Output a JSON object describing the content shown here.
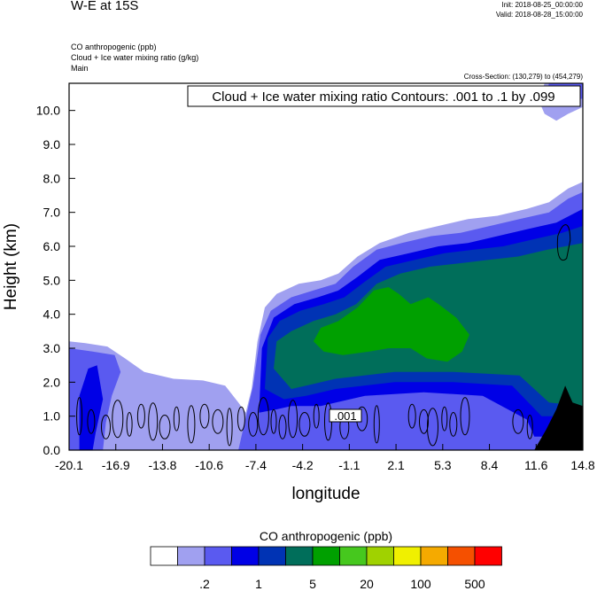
{
  "header": {
    "title": "W-E at 15S",
    "init": "Init: 2018-08-25_00:00:00",
    "valid": "Valid: 2018-08-28_15:00:00",
    "variables": [
      "CO anthropogenic   (ppb)",
      "Cloud + Ice water mixing ratio   (g/kg)",
      "Main"
    ],
    "cross_section": "Cross-Section: (130,279) to (454,279)"
  },
  "chart_data": {
    "type": "heatmap",
    "title": "Cloud + Ice water mixing ratio Contours: .001 to .1 by .099",
    "xlabel": "longitude",
    "ylabel": "Height (km)",
    "x_ticks": [
      "-20.1",
      "-16.9",
      "-13.8",
      "-10.6",
      "-7.4",
      "-4.2",
      "-1.1",
      "2.1",
      "5.3",
      "8.4",
      "11.6",
      "14.8"
    ],
    "y_ticks": [
      "0.0",
      "1.0",
      "2.0",
      "3.0",
      "4.0",
      "5.0",
      "6.0",
      "7.0",
      "8.0",
      "9.0",
      "10.0"
    ],
    "xlim": [
      -20.1,
      14.8
    ],
    "ylim": [
      0,
      10.8
    ],
    "contour_label": ".001",
    "colorbar": {
      "title": "CO anthropogenic  (ppb)",
      "colors": [
        "#ffffff",
        "#a0a0f0",
        "#5a5af0",
        "#0000e6",
        "#0033b4",
        "#006e5a",
        "#00a000",
        "#46c81e",
        "#a0d200",
        "#f0f000",
        "#f5aa00",
        "#f55000",
        "#ff0000"
      ],
      "labels": [
        ".2",
        "1",
        "5",
        "20",
        "100",
        "500"
      ]
    },
    "layers": [
      {
        "name": "co-layer-1",
        "color": "#a0a0f0",
        "left": [
          [
            -20.1,
            0
          ],
          [
            -20.1,
            3.2
          ],
          [
            -19,
            3.1
          ],
          [
            -17.5,
            3
          ],
          [
            -16,
            2.6
          ],
          [
            -14,
            2.2
          ],
          [
            -12,
            2
          ],
          [
            -10,
            2
          ],
          [
            -9,
            1.6
          ],
          [
            -8.2,
            1.2
          ],
          [
            -7.6,
            2.2
          ],
          [
            -7.1,
            3.6
          ],
          [
            -6.5,
            4.4
          ],
          [
            -5,
            4.8
          ],
          [
            -3,
            5
          ],
          [
            -1.5,
            5.2
          ],
          [
            0,
            5.7
          ],
          [
            2,
            6.2
          ],
          [
            4,
            6.5
          ],
          [
            6,
            6.7
          ],
          [
            8,
            6.9
          ],
          [
            10,
            7.1
          ],
          [
            12,
            7.4
          ],
          [
            14,
            7.8
          ],
          [
            14.8,
            7.9
          ],
          [
            14.8,
            10.8
          ],
          [
            12,
            10.8
          ],
          [
            11.5,
            10.2
          ],
          [
            11.7,
            9.8
          ],
          [
            12.5,
            9.6
          ],
          [
            13.3,
            9.9
          ],
          [
            14.2,
            10.1
          ],
          [
            14.8,
            10.2
          ],
          [
            14.8,
            0
          ]
        ],
        "right": null
      }
    ]
  }
}
